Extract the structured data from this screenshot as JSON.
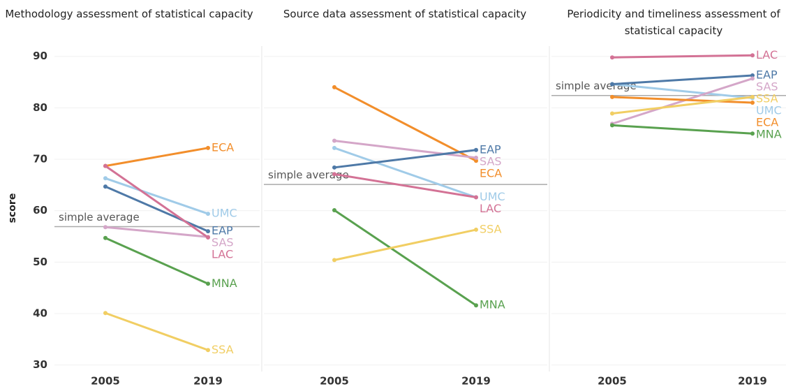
{
  "chart_data": [
    {
      "type": "line",
      "title": "Methodology assessment of statistical capacity",
      "ylabel": "score",
      "categories": [
        "2005",
        "2019"
      ],
      "ylim": [
        29,
        92
      ],
      "yticks": [
        30,
        40,
        50,
        60,
        70,
        80,
        90
      ],
      "grid": true,
      "annotation": "simple average",
      "average": 56.9,
      "series": [
        {
          "name": "ECA",
          "color": "#f28e2b",
          "values": [
            68.7,
            72.2
          ]
        },
        {
          "name": "UMC",
          "color": "#a0cbe8",
          "values": [
            66.3,
            59.4
          ]
        },
        {
          "name": "EAP",
          "color": "#4e79a7",
          "values": [
            64.7,
            56.0
          ]
        },
        {
          "name": "SAS",
          "color": "#d4a6c8",
          "values": [
            56.8,
            54.9
          ]
        },
        {
          "name": "LAC",
          "color": "#d37295",
          "values": [
            68.7,
            54.8
          ]
        },
        {
          "name": "MNA",
          "color": "#59a14f",
          "values": [
            54.7,
            45.8
          ]
        },
        {
          "name": "SSA",
          "color": "#f1ce63",
          "values": [
            40.1,
            32.9
          ]
        }
      ]
    },
    {
      "type": "line",
      "title": "Source data assessment of statistical capacity",
      "categories": [
        "2005",
        "2019"
      ],
      "ylim": [
        29,
        92
      ],
      "yticks": [
        30,
        40,
        50,
        60,
        70,
        80,
        90
      ],
      "grid": true,
      "annotation": "simple average",
      "average": 65.1,
      "series": [
        {
          "name": "ECA",
          "color": "#f28e2b",
          "values": [
            84.0,
            69.7
          ]
        },
        {
          "name": "SAS",
          "color": "#d4a6c8",
          "values": [
            73.6,
            70.3
          ]
        },
        {
          "name": "UMC",
          "color": "#a0cbe8",
          "values": [
            72.2,
            62.6
          ]
        },
        {
          "name": "EAP",
          "color": "#4e79a7",
          "values": [
            68.4,
            71.8
          ]
        },
        {
          "name": "LAC",
          "color": "#d37295",
          "values": [
            67.1,
            62.6
          ]
        },
        {
          "name": "MNA",
          "color": "#59a14f",
          "values": [
            60.1,
            41.6
          ]
        },
        {
          "name": "SSA",
          "color": "#f1ce63",
          "values": [
            50.4,
            56.3
          ]
        }
      ]
    },
    {
      "type": "line",
      "title": "Periodicity and timeliness assessment of statistical capacity",
      "categories": [
        "2005",
        "2019"
      ],
      "ylim": [
        29,
        92
      ],
      "yticks": [
        30,
        40,
        50,
        60,
        70,
        80,
        90
      ],
      "grid": true,
      "annotation": "simple average",
      "average": 82.4,
      "series": [
        {
          "name": "LAC",
          "color": "#d37295",
          "values": [
            89.8,
            90.2
          ]
        },
        {
          "name": "UMC",
          "color": "#a0cbe8",
          "values": [
            84.6,
            81.9
          ]
        },
        {
          "name": "EAP",
          "color": "#4e79a7",
          "values": [
            84.6,
            86.3
          ]
        },
        {
          "name": "SAS",
          "color": "#d4a6c8",
          "values": [
            76.9,
            85.7
          ]
        },
        {
          "name": "ECA",
          "color": "#f28e2b",
          "values": [
            82.1,
            81.0
          ]
        },
        {
          "name": "SSA",
          "color": "#f1ce63",
          "values": [
            78.9,
            82.1
          ]
        },
        {
          "name": "MNA",
          "color": "#59a14f",
          "values": [
            76.6,
            75.0
          ]
        }
      ]
    }
  ]
}
